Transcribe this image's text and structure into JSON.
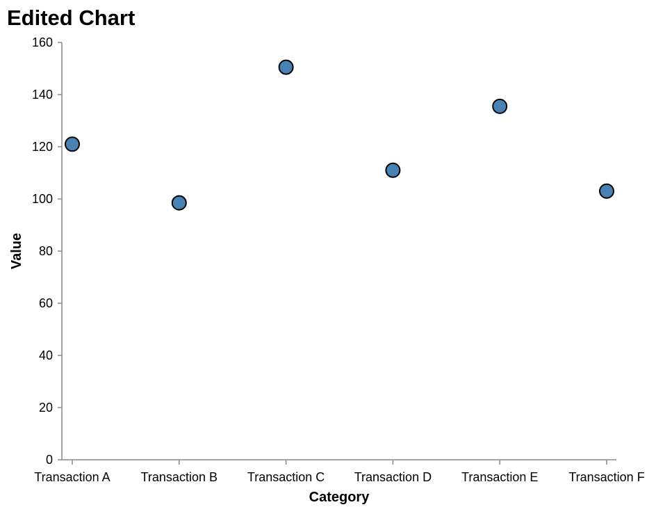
{
  "chart_data": {
    "type": "scatter",
    "title": "Edited Chart",
    "xlabel": "Category",
    "ylabel": "Value",
    "categories": [
      "Transaction A",
      "Transaction B",
      "Transaction C",
      "Transaction D",
      "Transaction E",
      "Transaction F"
    ],
    "values": [
      121,
      98.5,
      150.5,
      111,
      135.5,
      103
    ],
    "ylim": [
      0,
      160
    ],
    "yticks": [
      0,
      20,
      40,
      60,
      80,
      100,
      120,
      140,
      160
    ],
    "grid": false,
    "legend": "none",
    "point_color": "#4682b4",
    "point_stroke": "#000000"
  }
}
